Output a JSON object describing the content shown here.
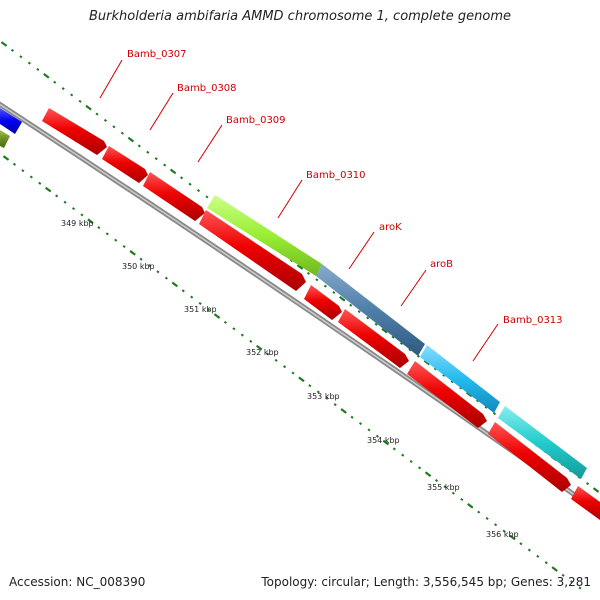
{
  "header": {
    "title": "Burkholderia ambifaria AMMD chromosome 1, complete genome"
  },
  "footer": {
    "accession": "Accession: NC_008390",
    "summary": "Topology: circular; Length: 3,556,545 bp; Genes: 3,281"
  },
  "gene_labels": [
    "Bamb_0307",
    "Bamb_0308",
    "Bamb_0309",
    "Bamb_0310",
    "aroK",
    "aroB",
    "Bamb_0313"
  ],
  "kbp_labels": [
    "349 kbp",
    "350 kbp",
    "351 kbp",
    "352 kbp",
    "353 kbp",
    "354 kbp",
    "355 kbp",
    "356 kbp"
  ],
  "colors": {
    "cds_red": "#ee0000",
    "cds_lime": "#99ee33",
    "cds_steel": "#4f7fa8",
    "cds_sky": "#22bbee",
    "cds_teal": "#22cccc",
    "cds_blue": "#0000ee",
    "cds_olive": "#6b8e23",
    "backbone": "#888888",
    "tick_green": "#1f7a1f",
    "label_red": "#cc0000"
  }
}
